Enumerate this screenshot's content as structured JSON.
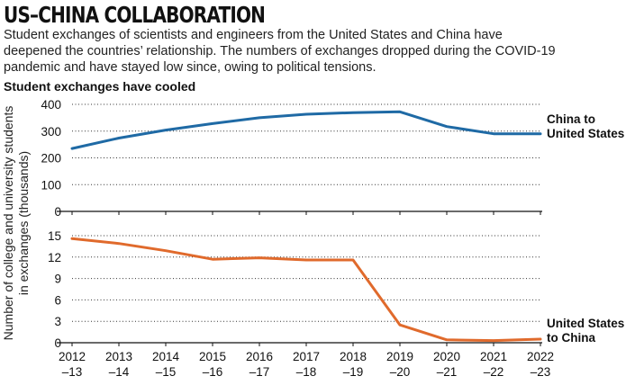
{
  "header": {
    "title": "US–CHINA COLLABORATION",
    "subtitle": "Student exchanges of scientists and engineers from the United States and China have deepened the countries’ relationship. The numbers of exchanges dropped during the COVID-19 pandemic and have stayed low since, owing to political tensions.",
    "chart_heading": "Student exchanges have cooled"
  },
  "chart_data": {
    "type": "line",
    "title": "Student exchanges have cooled",
    "ylabel_lines": [
      "Number of college and university students",
      "in exchanges (thousands)"
    ],
    "categories": [
      [
        "2012",
        "–13"
      ],
      [
        "2013",
        "–14"
      ],
      [
        "2014",
        "–15"
      ],
      [
        "2015",
        "–16"
      ],
      [
        "2016",
        "–17"
      ],
      [
        "2017",
        "–18"
      ],
      [
        "2018",
        "–19"
      ],
      [
        "2019",
        "–20"
      ],
      [
        "2020",
        "–21"
      ],
      [
        "2021",
        "–22"
      ],
      [
        "2022",
        "–23"
      ]
    ],
    "panels": [
      {
        "series_name_lines": [
          "China to",
          "United States"
        ],
        "color": "#1f6aa5",
        "ylim": [
          0,
          400
        ],
        "yticks": [
          0,
          100,
          200,
          300,
          400
        ],
        "values": [
          235,
          274,
          304,
          328,
          350,
          363,
          369,
          372,
          317,
          290,
          290
        ]
      },
      {
        "series_name_lines": [
          "United States",
          "to China"
        ],
        "color": "#e06a2c",
        "ylim": [
          0,
          15
        ],
        "yticks": [
          0,
          3,
          6,
          9,
          12,
          15
        ],
        "values": [
          14.6,
          13.9,
          12.9,
          11.7,
          11.9,
          11.6,
          11.6,
          2.5,
          0.4,
          0.3,
          0.5
        ]
      }
    ],
    "grid": "dotted horizontal"
  }
}
